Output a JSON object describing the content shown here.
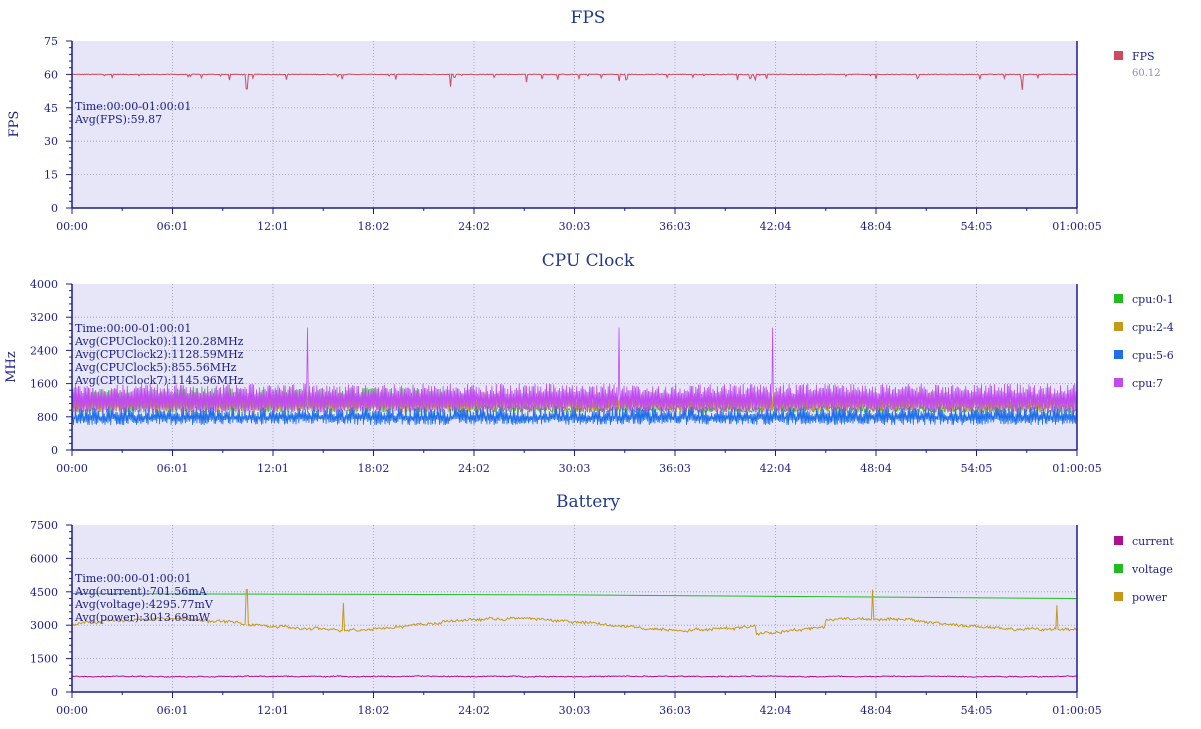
{
  "colors": {
    "title": "#1f3a8a",
    "plot_bg": "#e6e6f8",
    "axis": "#1c1c8c",
    "grid": "#9a9aae",
    "fps": "#d04a5e",
    "cpu01": "#22bb22",
    "cpu24": "#c59a1a",
    "cpu56": "#1f6fe8",
    "cpu7": "#c04cf0",
    "current": "#b0108f",
    "voltage": "#22bb22",
    "power": "#c59a1a"
  },
  "chart_data": [
    {
      "id": "fps",
      "type": "line",
      "title": "FPS",
      "ylabel": "FPS",
      "ylim": [
        0,
        75
      ],
      "yticks": [
        "0",
        "15",
        "30",
        "45",
        "60",
        "75"
      ],
      "xticks": [
        "00:00",
        "06:01",
        "12:01",
        "18:02",
        "24:02",
        "30:03",
        "36:03",
        "42:04",
        "48:04",
        "54:05",
        "01:00:05"
      ],
      "grid": true,
      "legend_position": "right",
      "annotation": [
        "Time:00:00-01:00:01",
        "Avg(FPS):59.87"
      ],
      "series": [
        {
          "name": "FPS",
          "sub": "60.12",
          "color_key": "fps",
          "base": 60,
          "noise": 0.3,
          "dips": [
            [
              0.174,
              53.5
            ],
            [
              0.377,
              54.5
            ],
            [
              0.452,
              56.5
            ],
            [
              0.544,
              57
            ],
            [
              0.662,
              57.5
            ],
            [
              0.8,
              58
            ],
            [
              0.946,
              53
            ]
          ]
        }
      ]
    },
    {
      "id": "cpu",
      "type": "line",
      "title": "CPU Clock",
      "ylabel": "MHz",
      "ylim": [
        0,
        4000
      ],
      "yticks": [
        "0",
        "800",
        "1600",
        "2400",
        "3200",
        "4000"
      ],
      "xticks": [
        "00:00",
        "06:01",
        "12:01",
        "18:02",
        "24:02",
        "30:03",
        "36:03",
        "42:04",
        "48:04",
        "54:05",
        "01:00:05"
      ],
      "grid": true,
      "legend_position": "right",
      "annotation": [
        "Time:00:00-01:00:01",
        "Avg(CPUClock0):1120.28MHz",
        "Avg(CPUClock2):1128.59MHz",
        "Avg(CPUClock5):855.56MHz",
        "Avg(CPUClock7):1145.96MHz"
      ],
      "series": [
        {
          "name": "cpu:0-1",
          "color_key": "cpu01",
          "low": 900,
          "high": 1500
        },
        {
          "name": "cpu:2-4",
          "color_key": "cpu24",
          "low": 900,
          "high": 1400
        },
        {
          "name": "cpu:5-6",
          "color_key": "cpu56",
          "low": 600,
          "high": 1050
        },
        {
          "name": "cpu:7",
          "color_key": "cpu7",
          "low": 900,
          "high": 1600,
          "spikes": [
            [
              0.234,
              2950
            ],
            [
              0.544,
              2950
            ],
            [
              0.697,
              2950
            ]
          ]
        }
      ]
    },
    {
      "id": "battery",
      "type": "line",
      "title": "Battery",
      "ylabel": "",
      "ylim": [
        0,
        7500
      ],
      "yticks": [
        "0",
        "1500",
        "3000",
        "4500",
        "6000",
        "7500"
      ],
      "xticks": [
        "00:00",
        "06:01",
        "12:01",
        "18:02",
        "24:02",
        "30:03",
        "36:03",
        "42:04",
        "48:04",
        "54:05",
        "01:00:05"
      ],
      "grid": true,
      "legend_position": "right",
      "annotation": [
        "Time:00:00-01:00:01",
        "Avg(current):701.56mA",
        "Avg(voltage):4295.77mV",
        "Avg(power):3013.69mW"
      ],
      "series": [
        {
          "name": "current",
          "color_key": "current",
          "base": 700,
          "noise": 60
        },
        {
          "name": "voltage",
          "color_key": "voltage",
          "start": 4420,
          "end": 4200
        },
        {
          "name": "power",
          "color_key": "power",
          "base": 3050,
          "noise": 180,
          "spikes": [
            [
              0.174,
              4600
            ],
            [
              0.27,
              4000
            ],
            [
              0.797,
              4600
            ],
            [
              0.98,
              3900
            ]
          ]
        }
      ]
    }
  ]
}
